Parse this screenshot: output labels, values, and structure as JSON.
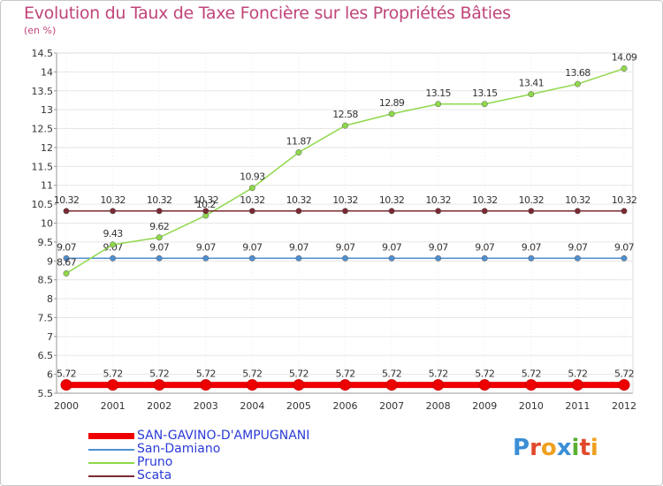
{
  "header": {
    "title": "Evolution du Taux de Taxe Foncière sur les Propriétés Bâties",
    "unit": "(en %)"
  },
  "logo": {
    "text": "Proxiti"
  },
  "chart_data": {
    "type": "line",
    "title": "Evolution du Taux de Taxe Foncière sur les Propriétés Bâties",
    "ylabel": "(en %)",
    "xlabel": "",
    "categories": [
      "2000",
      "2001",
      "2002",
      "2003",
      "2004",
      "2005",
      "2006",
      "2007",
      "2008",
      "2009",
      "2010",
      "2011",
      "2012"
    ],
    "ylim": [
      5.5,
      14.5
    ],
    "yticks": [
      "5.5",
      "6",
      "6.5",
      "7",
      "7.5",
      "8",
      "8.5",
      "9",
      "9.5",
      "10",
      "10.5",
      "11",
      "11.5",
      "12",
      "12.5",
      "13",
      "13.5",
      "14",
      "14.5"
    ],
    "series": [
      {
        "name": "SAN-GAVINO-D'AMPUGNANI",
        "color": "#ee0000",
        "bold": true,
        "values": [
          5.72,
          5.72,
          5.72,
          5.72,
          5.72,
          5.72,
          5.72,
          5.72,
          5.72,
          5.72,
          5.72,
          5.72,
          5.72
        ],
        "labels": [
          "5.72",
          "5.72",
          "5.72",
          "5.72",
          "5.72",
          "5.72",
          "5.72",
          "5.72",
          "5.72",
          "5.72",
          "5.72",
          "5.72",
          "5.72"
        ]
      },
      {
        "name": "San-Damiano",
        "color": "#4f8fd0",
        "bold": false,
        "values": [
          9.07,
          9.07,
          9.07,
          9.07,
          9.07,
          9.07,
          9.07,
          9.07,
          9.07,
          9.07,
          9.07,
          9.07,
          9.07
        ],
        "labels": [
          "9.07",
          "9.07",
          "9.07",
          "9.07",
          "9.07",
          "9.07",
          "9.07",
          "9.07",
          "9.07",
          "9.07",
          "9.07",
          "9.07",
          "9.07"
        ]
      },
      {
        "name": "Pruno",
        "color": "#8fd84a",
        "bold": false,
        "values": [
          8.67,
          9.43,
          9.62,
          10.2,
          10.93,
          11.87,
          12.58,
          12.89,
          13.15,
          13.15,
          13.41,
          13.68,
          14.09
        ],
        "labels": [
          "8.67",
          "9.43",
          "9.62",
          "10.2",
          "10.93",
          "11.87",
          "12.58",
          "12.89",
          "13.15",
          "13.15",
          "13.41",
          "13.68",
          "14.09"
        ]
      },
      {
        "name": "Scata",
        "color": "#7a2a32",
        "bold": false,
        "values": [
          10.32,
          10.32,
          10.32,
          10.32,
          10.32,
          10.32,
          10.32,
          10.32,
          10.32,
          10.32,
          10.32,
          10.32,
          10.32
        ],
        "labels": [
          "10.32",
          "10.32",
          "10.32",
          "10.32",
          "10.32",
          "10.32",
          "10.32",
          "10.32",
          "10.32",
          "10.32",
          "10.32",
          "10.32",
          "10.32"
        ]
      }
    ]
  }
}
